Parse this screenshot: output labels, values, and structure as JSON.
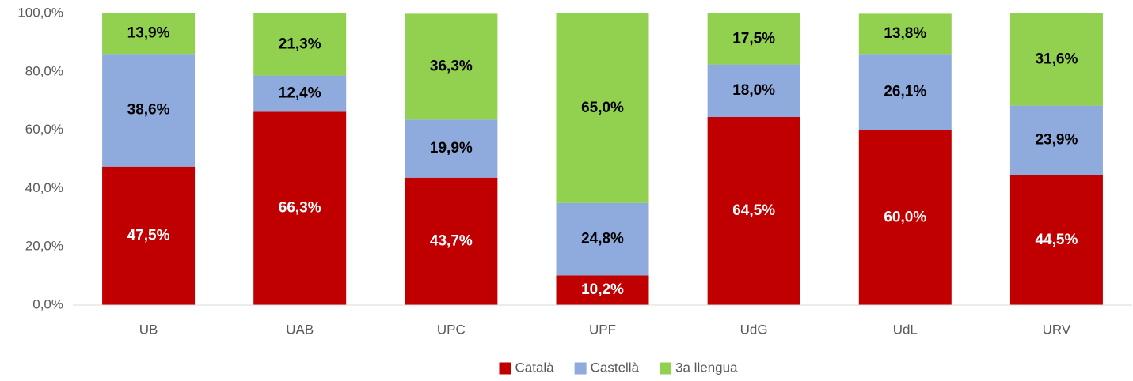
{
  "chart_data": {
    "type": "stacked_bar",
    "categories": [
      "UB",
      "UAB",
      "UPC",
      "UPF",
      "UdG",
      "UdL",
      "URV"
    ],
    "series": [
      {
        "name": "Català",
        "color": "#c00000",
        "label_color": "#ffffff",
        "values": [
          47.5,
          66.3,
          43.7,
          10.2,
          64.5,
          60.0,
          44.5
        ],
        "value_labels": [
          "47,5%",
          "66,3%",
          "43,7%",
          "10,2%",
          "64,5%",
          "60,0%",
          "44,5%"
        ]
      },
      {
        "name": "Castellà",
        "color": "#8faadc",
        "label_color": "#000000",
        "values": [
          38.6,
          12.4,
          19.9,
          24.8,
          18.0,
          26.1,
          23.9
        ],
        "value_labels": [
          "38,6%",
          "12,4%",
          "19,9%",
          "24,8%",
          "18,0%",
          "26,1%",
          "23,9%"
        ]
      },
      {
        "name": "3a llengua",
        "color": "#92d050",
        "label_color": "#000000",
        "values": [
          13.9,
          21.3,
          36.3,
          65.0,
          17.5,
          13.8,
          31.6
        ],
        "value_labels": [
          "13,9%",
          "21,3%",
          "36,3%",
          "65,0%",
          "17,5%",
          "13,8%",
          "31,6%"
        ]
      }
    ],
    "ylim": [
      0,
      100
    ],
    "yticks": [
      {
        "value": 0,
        "label": "0,0%"
      },
      {
        "value": 20,
        "label": "20,0%"
      },
      {
        "value": 40,
        "label": "40,0%"
      },
      {
        "value": 60,
        "label": "60,0%"
      },
      {
        "value": 80,
        "label": "80,0%"
      },
      {
        "value": 100,
        "label": "100,0%"
      }
    ],
    "grid": false,
    "legend": "bottom"
  }
}
